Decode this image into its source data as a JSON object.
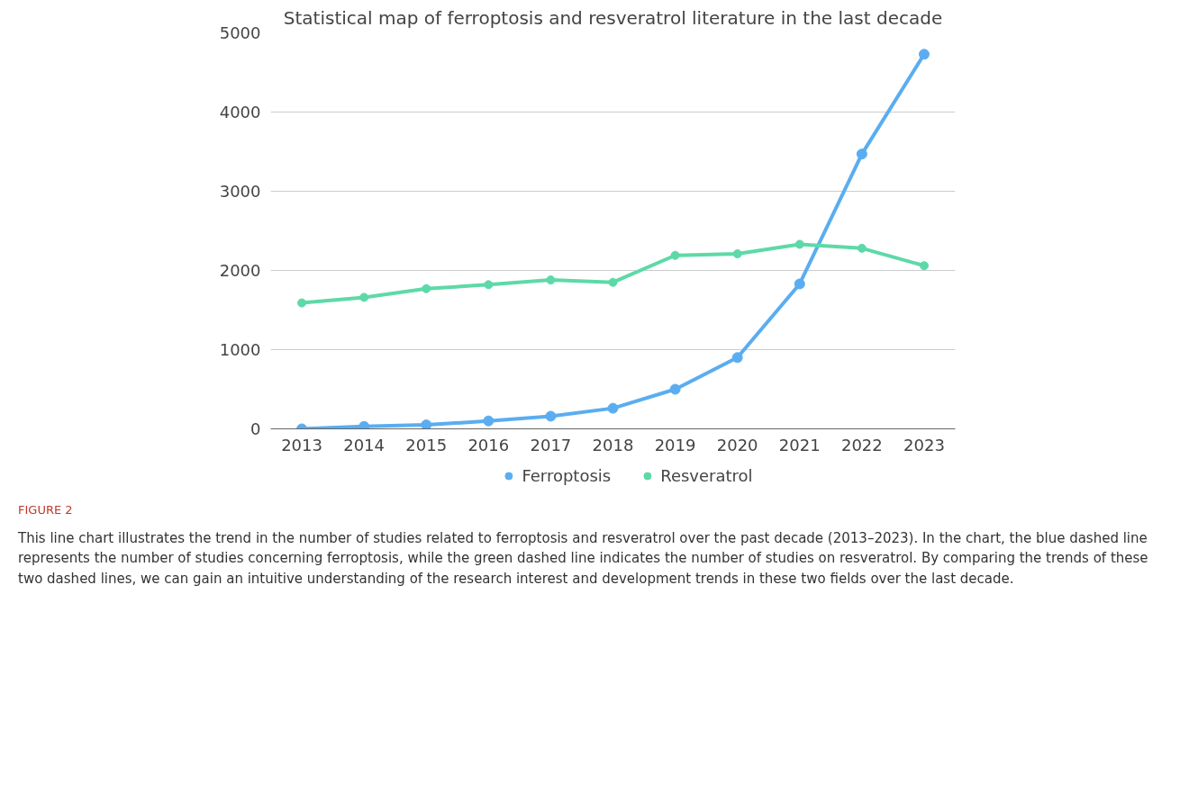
{
  "chart_data": {
    "type": "line",
    "title": "Statistical map of ferroptosis and resveratrol literature in the last decade",
    "categories": [
      "2013",
      "2014",
      "2015",
      "2016",
      "2017",
      "2018",
      "2019",
      "2020",
      "2021",
      "2022",
      "2023"
    ],
    "series": [
      {
        "name": "Ferroptosis",
        "color": "#5aadf0",
        "values": [
          0,
          30,
          50,
          100,
          160,
          260,
          500,
          900,
          1830,
          3470,
          4730
        ]
      },
      {
        "name": "Resveratrol",
        "color": "#5dd9a8",
        "values": [
          1590,
          1660,
          1770,
          1820,
          1880,
          1850,
          2190,
          2210,
          2330,
          2280,
          2060
        ]
      }
    ],
    "ylim": [
      0,
      5000
    ],
    "yticks": [
      0,
      1000,
      2000,
      3000,
      4000,
      5000
    ],
    "grid": "y",
    "legend": "bottom",
    "marker": "circle",
    "line_style": "solid",
    "annotations": [
      "FIGURE 2",
      "This line chart illustrates the trend in the number of studies related to ferroptosis and resveratrol over the past decade (2013–2023). In the chart, the blue dashed line represents the number of studies concerning ferroptosis, while the green dashed line indicates the number of studies on resveratrol. By comparing the trends of these two dashed lines, we can gain an intuitive understanding of the research interest and development trends in these two fields over the last decade."
    ]
  }
}
